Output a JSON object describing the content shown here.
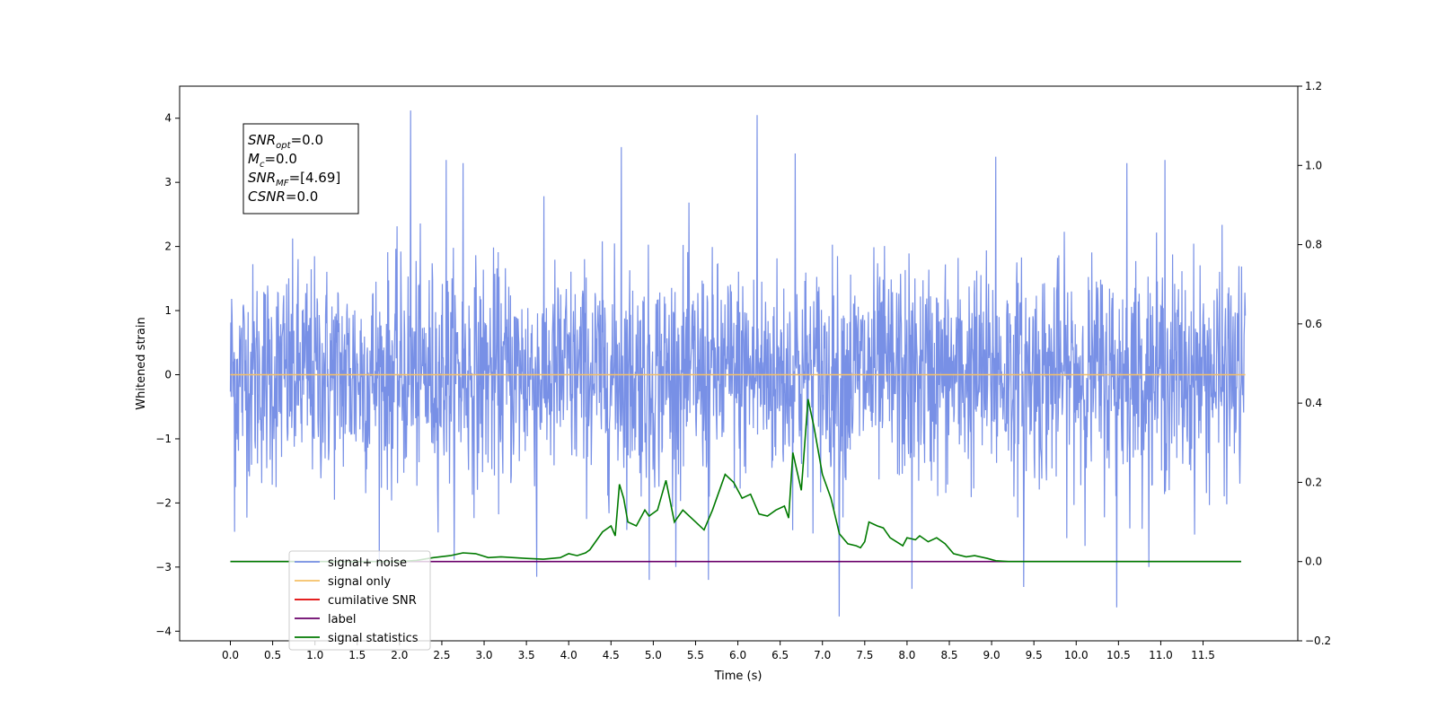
{
  "chart_data": {
    "type": "line",
    "xlabel": "Time (s)",
    "ylabel": "Whitened strain",
    "xlim": [
      -0.6,
      12.62
    ],
    "ylim": [
      -4.15,
      4.5
    ],
    "y2lim": [
      -0.2,
      1.2
    ],
    "x_ticks": [
      0.0,
      0.5,
      1.0,
      1.5,
      2.0,
      2.5,
      3.0,
      3.5,
      4.0,
      4.5,
      5.0,
      5.5,
      6.0,
      6.5,
      7.0,
      7.5,
      8.0,
      8.5,
      9.0,
      9.5,
      10.0,
      10.5,
      11.0,
      11.5
    ],
    "x_tick_labels": [
      "0.0",
      "0.5",
      "1.0",
      "1.5",
      "2.0",
      "2.5",
      "3.0",
      "3.5",
      "4.0",
      "4.5",
      "5.0",
      "5.5",
      "6.0",
      "6.5",
      "7.0",
      "7.5",
      "8.0",
      "8.5",
      "9.0",
      "9.5",
      "10.0",
      "10.5",
      "11.0",
      "11.5"
    ],
    "y_ticks": [
      -4,
      -3,
      -2,
      -1,
      0,
      1,
      2,
      3,
      4
    ],
    "y_tick_labels": [
      "−4",
      "−3",
      "−2",
      "−1",
      "0",
      "1",
      "2",
      "3",
      "4"
    ],
    "y2_ticks": [
      -0.2,
      0.0,
      0.2,
      0.4,
      0.6,
      0.8,
      1.0,
      1.2
    ],
    "y2_tick_labels": [
      "−0.2",
      "0.0",
      "0.2",
      "0.4",
      "0.6",
      "0.8",
      "1.0",
      "1.2"
    ],
    "noise": {
      "x_start": 0.0,
      "x_end": 12.0,
      "samples": 2400,
      "peaks": [
        {
          "x": 2.13,
          "y": 4.12
        },
        {
          "x": 6.23,
          "y": 4.05
        },
        {
          "x": 4.62,
          "y": 3.55
        },
        {
          "x": 2.55,
          "y": 3.35
        },
        {
          "x": 2.75,
          "y": 3.3
        },
        {
          "x": 6.68,
          "y": 3.45
        },
        {
          "x": 9.05,
          "y": 3.4
        },
        {
          "x": 11.05,
          "y": 3.35
        },
        {
          "x": 10.6,
          "y": 3.3
        },
        {
          "x": 7.2,
          "y": -3.77
        },
        {
          "x": 10.48,
          "y": -3.63
        },
        {
          "x": 9.38,
          "y": -3.31
        },
        {
          "x": 8.06,
          "y": -3.34
        },
        {
          "x": 5.65,
          "y": -3.2
        },
        {
          "x": 3.62,
          "y": -3.15
        },
        {
          "x": 4.95,
          "y": -3.2
        },
        {
          "x": 0.02,
          "y": 0.92
        },
        {
          "x": 0.05,
          "y": -2.45
        }
      ]
    },
    "series": [
      {
        "name": "signal+ noise",
        "color": "#7890e6"
      },
      {
        "name": "signal only",
        "color": "#f5c067",
        "x": [
          0.0,
          12.0
        ],
        "y": [
          0.0,
          0.0
        ]
      },
      {
        "name": "cumilative SNR",
        "color": "#e00000",
        "x": [],
        "y": []
      },
      {
        "name": "label",
        "color": "#6a006a",
        "axis": "right",
        "x": [
          0.0,
          11.95
        ],
        "y": [
          0.0,
          0.0
        ]
      },
      {
        "name": "signal statistics",
        "color": "#007a00",
        "axis": "right",
        "x": [
          0.0,
          1.0,
          2.0,
          2.2,
          2.4,
          2.6,
          2.75,
          2.9,
          3.05,
          3.2,
          3.5,
          3.7,
          3.9,
          4.0,
          4.1,
          4.2,
          4.25,
          4.4,
          4.5,
          4.55,
          4.6,
          4.65,
          4.7,
          4.8,
          4.9,
          4.95,
          5.05,
          5.15,
          5.25,
          5.35,
          5.5,
          5.6,
          5.7,
          5.85,
          5.95,
          6.05,
          6.15,
          6.25,
          6.35,
          6.45,
          6.55,
          6.6,
          6.65,
          6.75,
          6.83,
          6.9,
          7.0,
          7.1,
          7.2,
          7.3,
          7.4,
          7.45,
          7.5,
          7.55,
          7.65,
          7.72,
          7.8,
          7.95,
          8.0,
          8.1,
          8.15,
          8.25,
          8.35,
          8.45,
          8.55,
          8.7,
          8.8,
          8.95,
          9.05,
          9.2,
          10.0,
          11.95
        ],
        "y": [
          0.0,
          0.0,
          0.0,
          0.003,
          0.01,
          0.015,
          0.022,
          0.02,
          0.01,
          0.012,
          0.008,
          0.006,
          0.01,
          0.02,
          0.015,
          0.022,
          0.03,
          0.075,
          0.09,
          0.065,
          0.195,
          0.16,
          0.1,
          0.09,
          0.13,
          0.115,
          0.13,
          0.205,
          0.1,
          0.13,
          0.1,
          0.08,
          0.13,
          0.22,
          0.2,
          0.16,
          0.17,
          0.12,
          0.115,
          0.13,
          0.14,
          0.11,
          0.275,
          0.18,
          0.41,
          0.34,
          0.22,
          0.16,
          0.07,
          0.045,
          0.04,
          0.035,
          0.05,
          0.1,
          0.09,
          0.085,
          0.06,
          0.04,
          0.06,
          0.055,
          0.065,
          0.05,
          0.06,
          0.045,
          0.02,
          0.012,
          0.015,
          0.008,
          0.002,
          0.0,
          0.0,
          0.0
        ]
      }
    ],
    "legend": {
      "placement": "lower-left",
      "entries": [
        {
          "label": "signal+ noise",
          "color": "#7890e6"
        },
        {
          "label": "signal only",
          "color": "#f5c067"
        },
        {
          "label": "cumilative SNR",
          "color": "#e00000"
        },
        {
          "label": "label",
          "color": "#6a006a"
        },
        {
          "label": "signal statistics",
          "color": "#007a00"
        }
      ]
    },
    "annotation": {
      "lines": [
        {
          "sym": "SNR",
          "sub": "opt",
          "val": "=0.0"
        },
        {
          "sym": "M",
          "sub": "c",
          "val": "=0.0"
        },
        {
          "sym": "SNR",
          "sub": "MF",
          "val": "=[4.69]"
        },
        {
          "sym": "CSNR",
          "sub": "",
          "val": "=0.0"
        }
      ]
    },
    "grid": false
  }
}
